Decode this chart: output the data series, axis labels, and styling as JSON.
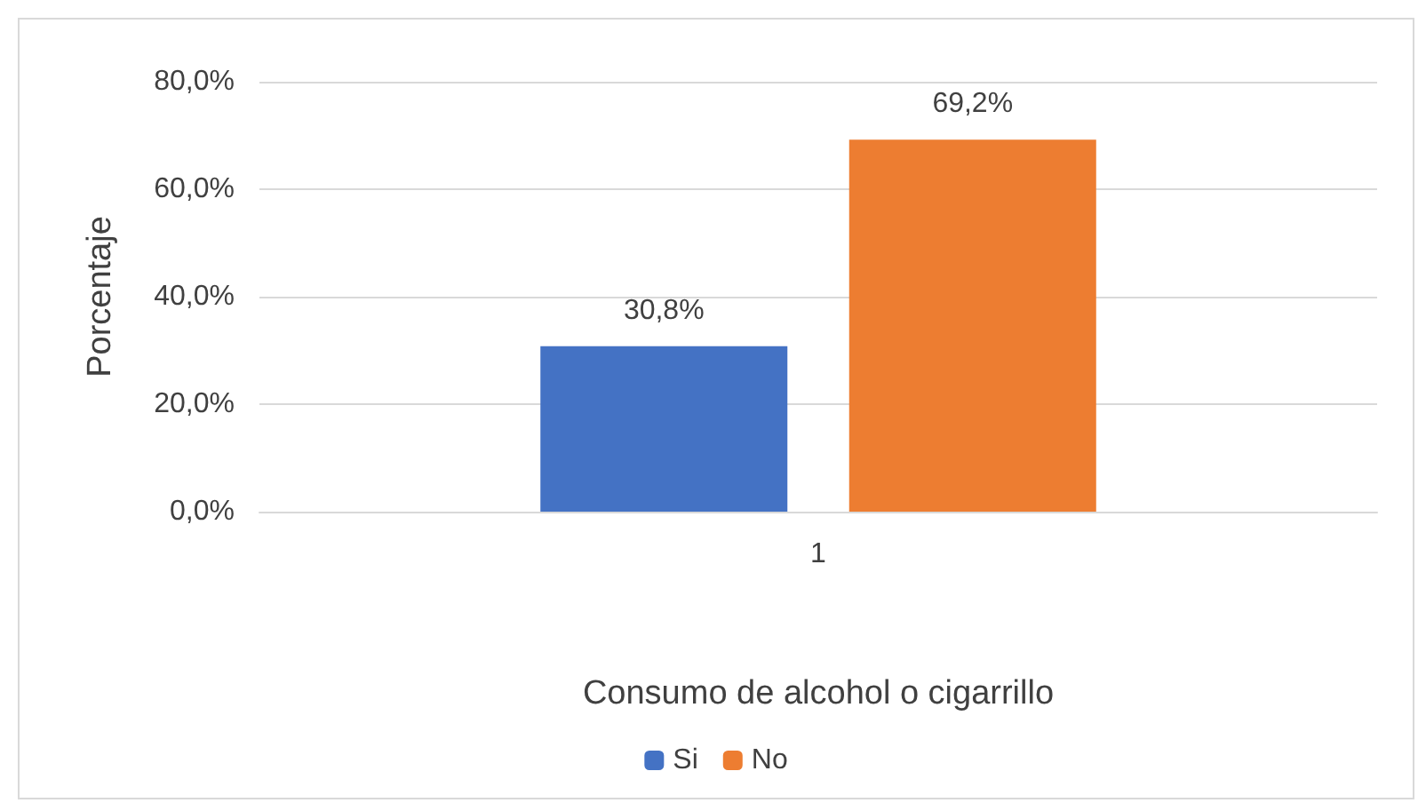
{
  "chart_data": {
    "type": "bar",
    "categories": [
      "1"
    ],
    "xlabel": "Consumo de alcohol o cigarrillo",
    "ylabel": "Porcentaje",
    "series": [
      {
        "name": "Si",
        "color": "#4472c4",
        "values": [
          30.8
        ],
        "value_labels": [
          "30,8%"
        ]
      },
      {
        "name": "No",
        "color": "#ed7d31",
        "values": [
          69.2
        ],
        "value_labels": [
          "69,2%"
        ]
      }
    ],
    "ylim": [
      0,
      80
    ],
    "yticks": [
      {
        "value": 0,
        "label": "0,0%"
      },
      {
        "value": 20,
        "label": "20,0%"
      },
      {
        "value": 40,
        "label": "40,0%"
      },
      {
        "value": 60,
        "label": "60,0%"
      },
      {
        "value": 80,
        "label": "80,0%"
      }
    ],
    "grid": "y",
    "legend": "bottom"
  }
}
